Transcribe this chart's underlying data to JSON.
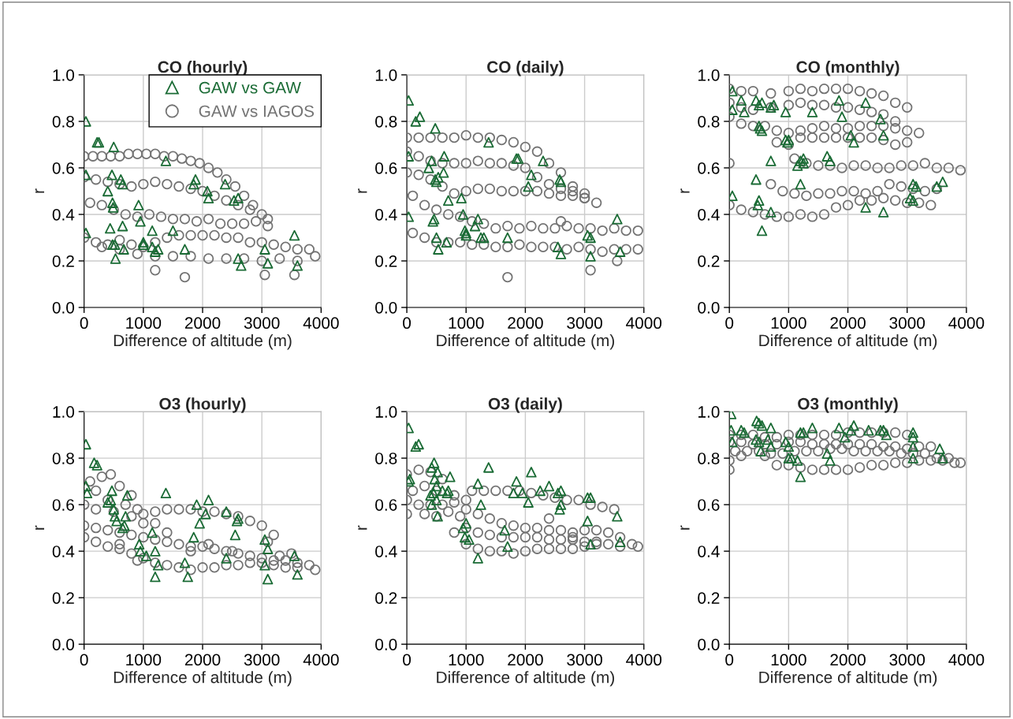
{
  "chart_data": [
    {
      "type": "scatter",
      "title": "CO (hourly)",
      "xlabel": "Difference of altitude (m)",
      "ylabel": "r",
      "xlim": [
        0,
        4000
      ],
      "ylim": [
        0,
        1
      ],
      "xticks": [
        0,
        1000,
        2000,
        3000,
        4000
      ],
      "yticks": [
        {
          "value": 0,
          "label": "0.0"
        },
        {
          "value": 0.2,
          "label": "0.2"
        },
        {
          "value": 0.4,
          "label": "0.4"
        },
        {
          "value": 0.6,
          "label": "0.6"
        },
        {
          "value": 0.8,
          "label": "0.8"
        },
        {
          "value": 1,
          "label": "1.0"
        }
      ],
      "grid": true,
      "legend": "top right",
      "series": [
        {
          "name": "GAW vs GAW",
          "color": "#1a6b35",
          "marker": "triangle",
          "x": [
            30,
            220,
            250,
            500,
            1380,
            30,
            470,
            620,
            650,
            400,
            480,
            490,
            920,
            1850,
            1880,
            2380,
            2100,
            2080,
            2530,
            2600,
            30,
            440,
            650,
            950,
            1500,
            1150,
            480,
            520,
            530,
            670,
            1000,
            1150,
            1200,
            1250,
            1700,
            2600,
            2650,
            3050,
            3100,
            3550,
            3600,
            1000
          ],
          "values": [
            0.8,
            0.71,
            0.71,
            0.69,
            0.63,
            0.57,
            0.57,
            0.55,
            0.53,
            0.5,
            0.45,
            0.43,
            0.44,
            0.53,
            0.55,
            0.53,
            0.47,
            0.5,
            0.46,
            0.47,
            0.32,
            0.34,
            0.35,
            0.37,
            0.33,
            0.33,
            0.27,
            0.27,
            0.21,
            0.25,
            0.27,
            0.26,
            0.24,
            0.25,
            0.25,
            0.21,
            0.18,
            0.25,
            0.19,
            0.31,
            0.18,
            0.28
          ]
        },
        {
          "name": "GAW vs IAGOS",
          "color": "#737373",
          "marker": "circle",
          "x": [
            0,
            150,
            300,
            450,
            600,
            750,
            900,
            1050,
            1200,
            1350,
            1500,
            1650,
            1800,
            1950,
            2100,
            2250,
            2400,
            2550,
            2700,
            2850,
            0,
            200,
            400,
            600,
            800,
            1000,
            1200,
            1400,
            1600,
            1800,
            2000,
            2200,
            2400,
            2600,
            2800,
            3000,
            100,
            300,
            500,
            700,
            900,
            1100,
            1300,
            1500,
            1700,
            1900,
            2100,
            2300,
            2500,
            2700,
            2900,
            3100,
            0,
            200,
            400,
            600,
            800,
            1000,
            1200,
            1400,
            1600,
            1800,
            2000,
            2200,
            2400,
            2600,
            2800,
            3000,
            3200,
            3400,
            3600,
            3800,
            300,
            600,
            900,
            1200,
            1500,
            1800,
            2100,
            2400,
            2700,
            3000,
            3300,
            3600,
            3900,
            1200,
            1700,
            3050,
            3100,
            3550
          ],
          "values": [
            0.65,
            0.65,
            0.65,
            0.65,
            0.65,
            0.66,
            0.66,
            0.66,
            0.66,
            0.65,
            0.65,
            0.64,
            0.63,
            0.62,
            0.6,
            0.58,
            0.55,
            0.52,
            0.48,
            0.44,
            0.56,
            0.55,
            0.54,
            0.53,
            0.52,
            0.53,
            0.54,
            0.53,
            0.52,
            0.51,
            0.5,
            0.48,
            0.46,
            0.44,
            0.42,
            0.4,
            0.45,
            0.44,
            0.42,
            0.4,
            0.39,
            0.4,
            0.39,
            0.38,
            0.38,
            0.37,
            0.38,
            0.36,
            0.36,
            0.36,
            0.37,
            0.38,
            0.3,
            0.28,
            0.27,
            0.29,
            0.27,
            0.26,
            0.28,
            0.3,
            0.31,
            0.31,
            0.31,
            0.31,
            0.3,
            0.3,
            0.28,
            0.28,
            0.27,
            0.26,
            0.25,
            0.25,
            0.26,
            0.25,
            0.23,
            0.22,
            0.22,
            0.22,
            0.21,
            0.21,
            0.21,
            0.2,
            0.21,
            0.2,
            0.22,
            0.16,
            0.13,
            0.14,
            0.35,
            0.14
          ]
        }
      ]
    },
    {
      "type": "scatter",
      "title": "CO (daily)",
      "xlabel": "Difference of altitude (m)",
      "ylabel": "r",
      "xlim": [
        0,
        4000
      ],
      "ylim": [
        0,
        1
      ],
      "xticks": [
        0,
        1000,
        2000,
        3000,
        4000
      ],
      "yticks": [
        {
          "value": 0,
          "label": "0.0"
        },
        {
          "value": 0.2,
          "label": "0.2"
        },
        {
          "value": 0.4,
          "label": "0.4"
        },
        {
          "value": 0.6,
          "label": "0.6"
        },
        {
          "value": 0.8,
          "label": "0.8"
        },
        {
          "value": 1,
          "label": "1.0"
        }
      ],
      "grid": true,
      "series": [
        {
          "color": "#1a6b35",
          "marker": "triangle",
          "x": [
            30,
            150,
            220,
            480,
            1380,
            30,
            420,
            630,
            370,
            620,
            480,
            530,
            500,
            700,
            920,
            2300,
            1850,
            1880,
            2600,
            2580,
            2100,
            2050,
            30,
            440,
            460,
            950,
            1000,
            1200,
            1150,
            500,
            530,
            670,
            980,
            1000,
            1250,
            1300,
            1700,
            2550,
            2600,
            3050,
            3100,
            3100,
            3550,
            3600
          ],
          "values": [
            0.89,
            0.8,
            0.82,
            0.77,
            0.71,
            0.65,
            0.63,
            0.65,
            0.6,
            0.58,
            0.55,
            0.56,
            0.54,
            0.46,
            0.47,
            0.63,
            0.64,
            0.64,
            0.54,
            0.55,
            0.57,
            0.52,
            0.39,
            0.37,
            0.38,
            0.4,
            0.32,
            0.38,
            0.35,
            0.3,
            0.25,
            0.28,
            0.33,
            0.31,
            0.3,
            0.3,
            0.3,
            0.26,
            0.23,
            0.31,
            0.3,
            0.22,
            0.38,
            0.24
          ]
        },
        {
          "color": "#737373",
          "marker": "circle",
          "x": [
            0,
            200,
            400,
            600,
            800,
            1000,
            1200,
            1400,
            1600,
            1800,
            2000,
            2200,
            2400,
            2600,
            2800,
            3000,
            0,
            200,
            400,
            600,
            800,
            1000,
            1200,
            1400,
            1600,
            1800,
            2000,
            2200,
            2400,
            2600,
            2800,
            3000,
            3200,
            0,
            200,
            400,
            600,
            800,
            1000,
            1200,
            1400,
            1600,
            1800,
            2000,
            2200,
            2400,
            2600,
            2800,
            3000,
            100,
            300,
            500,
            700,
            900,
            1100,
            1300,
            1500,
            1700,
            1900,
            2100,
            2300,
            2500,
            2700,
            2900,
            3100,
            3300,
            3500,
            3700,
            3900,
            100,
            300,
            500,
            700,
            900,
            1100,
            1300,
            1500,
            1700,
            1900,
            2100,
            2300,
            2500,
            2700,
            2900,
            3100,
            3300,
            3500,
            3700,
            3900,
            1700,
            3100,
            3550,
            2600
          ],
          "values": [
            0.73,
            0.73,
            0.73,
            0.73,
            0.73,
            0.74,
            0.73,
            0.73,
            0.72,
            0.71,
            0.69,
            0.67,
            0.62,
            0.58,
            0.52,
            0.47,
            0.67,
            0.65,
            0.63,
            0.62,
            0.62,
            0.62,
            0.63,
            0.62,
            0.62,
            0.61,
            0.6,
            0.56,
            0.53,
            0.51,
            0.5,
            0.49,
            0.45,
            0.58,
            0.57,
            0.55,
            0.52,
            0.49,
            0.5,
            0.51,
            0.51,
            0.5,
            0.5,
            0.5,
            0.5,
            0.49,
            0.48,
            0.48,
            0.47,
            0.48,
            0.44,
            0.42,
            0.4,
            0.39,
            0.37,
            0.36,
            0.34,
            0.35,
            0.34,
            0.35,
            0.34,
            0.34,
            0.35,
            0.34,
            0.34,
            0.33,
            0.34,
            0.33,
            0.33,
            0.32,
            0.3,
            0.28,
            0.28,
            0.28,
            0.27,
            0.27,
            0.26,
            0.26,
            0.27,
            0.26,
            0.26,
            0.26,
            0.25,
            0.26,
            0.25,
            0.24,
            0.25,
            0.25,
            0.25,
            0.13,
            0.16,
            0.2,
            0.37
          ]
        }
      ]
    },
    {
      "type": "scatter",
      "title": "CO (monthly)",
      "xlabel": "Difference of altitude (m)",
      "ylabel": "r",
      "xlim": [
        0,
        4000
      ],
      "ylim": [
        0,
        1
      ],
      "xticks": [
        0,
        1000,
        2000,
        3000,
        4000
      ],
      "yticks": [
        {
          "value": 0,
          "label": "0.0"
        },
        {
          "value": 0.2,
          "label": "0.2"
        },
        {
          "value": 0.4,
          "label": "0.4"
        },
        {
          "value": 0.6,
          "label": "0.6"
        },
        {
          "value": 0.8,
          "label": "0.8"
        },
        {
          "value": 1,
          "label": "1.0"
        }
      ],
      "grid": true,
      "series": [
        {
          "color": "#1a6b35",
          "marker": "triangle",
          "x": [
            50,
            200,
            250,
            50,
            450,
            500,
            550,
            700,
            750,
            950,
            1400,
            1850,
            2300,
            1900,
            2550,
            2600,
            2050,
            2100,
            500,
            520,
            550,
            950,
            980,
            1000,
            1200,
            1250,
            1650,
            1700,
            700,
            1150,
            1250,
            450,
            1200,
            3100,
            3150,
            3500,
            3600,
            50,
            500,
            480,
            700,
            2300,
            2600,
            3050,
            3100,
            550
          ],
          "values": [
            0.93,
            0.89,
            0.84,
            0.85,
            0.89,
            0.87,
            0.88,
            0.86,
            0.87,
            0.84,
            0.84,
            0.89,
            0.88,
            0.82,
            0.81,
            0.74,
            0.74,
            0.71,
            0.78,
            0.77,
            0.76,
            0.72,
            0.71,
            0.72,
            0.63,
            0.64,
            0.65,
            0.63,
            0.63,
            0.61,
            0.62,
            0.55,
            0.53,
            0.53,
            0.52,
            0.52,
            0.54,
            0.48,
            0.46,
            0.44,
            0.41,
            0.43,
            0.41,
            0.47,
            0.46,
            0.33
          ]
        },
        {
          "color": "#737373",
          "marker": "circle",
          "x": [
            0,
            200,
            400,
            700,
            1000,
            1200,
            1400,
            1600,
            1800,
            2000,
            2200,
            2400,
            2600,
            2800,
            3000,
            0,
            200,
            400,
            700,
            1000,
            1200,
            1400,
            1600,
            1800,
            2000,
            2200,
            2400,
            2600,
            2800,
            0,
            200,
            400,
            600,
            800,
            1000,
            1200,
            1400,
            1600,
            1800,
            2000,
            2200,
            2400,
            2600,
            2800,
            3000,
            3200,
            800,
            1000,
            1200,
            1400,
            1600,
            1800,
            2000,
            2200,
            2400,
            2600,
            2800,
            3000,
            0,
            1100,
            1300,
            1500,
            1700,
            1900,
            2100,
            2300,
            2500,
            2700,
            2900,
            3100,
            3300,
            3500,
            3700,
            3900,
            700,
            900,
            1100,
            1300,
            1500,
            1700,
            1900,
            2100,
            2300,
            2500,
            2700,
            2900,
            3100,
            3300,
            3500,
            0,
            200,
            400,
            600,
            800,
            1000,
            1200,
            1400,
            1600,
            1800,
            2000,
            2200,
            2400,
            2600,
            2800,
            3000,
            3200,
            3400
          ],
          "values": [
            0.94,
            0.93,
            0.93,
            0.92,
            0.93,
            0.94,
            0.93,
            0.94,
            0.94,
            0.94,
            0.93,
            0.92,
            0.91,
            0.88,
            0.86,
            0.88,
            0.86,
            0.85,
            0.86,
            0.87,
            0.88,
            0.87,
            0.87,
            0.86,
            0.86,
            0.85,
            0.84,
            0.83,
            0.8,
            0.82,
            0.79,
            0.78,
            0.78,
            0.76,
            0.75,
            0.76,
            0.77,
            0.78,
            0.77,
            0.77,
            0.78,
            0.78,
            0.78,
            0.77,
            0.76,
            0.75,
            0.71,
            0.7,
            0.73,
            0.73,
            0.73,
            0.73,
            0.73,
            0.73,
            0.73,
            0.72,
            0.7,
            0.71,
            0.62,
            0.64,
            0.62,
            0.61,
            0.61,
            0.6,
            0.61,
            0.61,
            0.6,
            0.6,
            0.61,
            0.61,
            0.62,
            0.6,
            0.6,
            0.59,
            0.53,
            0.5,
            0.49,
            0.48,
            0.49,
            0.49,
            0.5,
            0.5,
            0.49,
            0.5,
            0.53,
            0.52,
            0.51,
            0.5,
            0.51,
            0.44,
            0.42,
            0.41,
            0.4,
            0.39,
            0.39,
            0.4,
            0.39,
            0.4,
            0.43,
            0.44,
            0.46,
            0.46,
            0.47,
            0.46,
            0.45,
            0.45,
            0.44
          ]
        }
      ]
    },
    {
      "type": "scatter",
      "title": "O3 (hourly)",
      "xlabel": "Difference of altitude (m)",
      "ylabel": "r",
      "xlim": [
        0,
        4000
      ],
      "ylim": [
        0,
        1
      ],
      "xticks": [
        0,
        1000,
        2000,
        3000,
        4000
      ],
      "yticks": [
        {
          "value": 0,
          "label": "0.0"
        },
        {
          "value": 0.2,
          "label": "0.2"
        },
        {
          "value": 0.4,
          "label": "0.4"
        },
        {
          "value": 0.6,
          "label": "0.6"
        },
        {
          "value": 0.8,
          "label": "0.8"
        },
        {
          "value": 1,
          "label": "1.0"
        }
      ],
      "grid": true,
      "series": [
        {
          "color": "#1a6b35",
          "marker": "triangle",
          "x": [
            30,
            170,
            220,
            30,
            50,
            470,
            730,
            1380,
            2100,
            1900,
            2400,
            2600,
            2580,
            2050,
            1950,
            1850,
            2550,
            3050,
            3100,
            3550,
            3600,
            3050,
            3100,
            2400,
            1700,
            1750,
            1200,
            1250,
            1050,
            950,
            930,
            400,
            450,
            500,
            520,
            550,
            700,
            680,
            650,
            1150,
            1200
          ],
          "values": [
            0.86,
            0.78,
            0.77,
            0.68,
            0.65,
            0.66,
            0.64,
            0.65,
            0.62,
            0.6,
            0.57,
            0.54,
            0.53,
            0.56,
            0.52,
            0.46,
            0.47,
            0.45,
            0.41,
            0.38,
            0.3,
            0.34,
            0.28,
            0.37,
            0.35,
            0.29,
            0.29,
            0.34,
            0.38,
            0.4,
            0.43,
            0.61,
            0.62,
            0.58,
            0.55,
            0.53,
            0.55,
            0.51,
            0.5,
            0.48,
            0.4
          ]
        },
        {
          "color": "#737373",
          "marker": "circle",
          "x": [
            1000,
            1200,
            1400,
            1600,
            1800,
            2000,
            2200,
            2400,
            2600,
            2800,
            3000,
            3200,
            100,
            300,
            450,
            600,
            800,
            200,
            400,
            700,
            900,
            0,
            200,
            500,
            800,
            1000,
            1200,
            1400,
            0,
            200,
            400,
            600,
            800,
            1000,
            1200,
            1400,
            1600,
            1800,
            2000,
            2200,
            2400,
            2600,
            2800,
            3000,
            3200,
            3400,
            3600,
            3800,
            3900,
            0,
            200,
            400,
            600,
            800,
            1000,
            1200,
            1400,
            1600,
            1800,
            2000,
            2200,
            2400,
            2600,
            2800,
            3000,
            3200,
            3400,
            3600,
            1800,
            2100,
            2500,
            3100,
            3300,
            3500,
            600,
            900
          ],
          "values": [
            0.56,
            0.57,
            0.58,
            0.58,
            0.58,
            0.57,
            0.57,
            0.56,
            0.55,
            0.53,
            0.51,
            0.47,
            0.7,
            0.72,
            0.73,
            0.68,
            0.64,
            0.66,
            0.62,
            0.6,
            0.58,
            0.6,
            0.58,
            0.57,
            0.55,
            0.52,
            0.52,
            0.48,
            0.51,
            0.5,
            0.49,
            0.48,
            0.47,
            0.46,
            0.45,
            0.44,
            0.43,
            0.42,
            0.42,
            0.41,
            0.4,
            0.39,
            0.38,
            0.37,
            0.36,
            0.36,
            0.35,
            0.34,
            0.32,
            0.46,
            0.44,
            0.42,
            0.41,
            0.39,
            0.37,
            0.35,
            0.34,
            0.33,
            0.32,
            0.33,
            0.33,
            0.34,
            0.34,
            0.35,
            0.35,
            0.34,
            0.33,
            0.33,
            0.4,
            0.43,
            0.4,
            0.44,
            0.38,
            0.39,
            0.43,
            0.36
          ]
        }
      ]
    },
    {
      "type": "scatter",
      "title": "O3 (daily)",
      "xlabel": "Difference of altitude (m)",
      "ylabel": "r",
      "xlim": [
        0,
        4000
      ],
      "ylim": [
        0,
        1
      ],
      "xticks": [
        0,
        1000,
        2000,
        3000,
        4000
      ],
      "yticks": [
        {
          "value": 0,
          "label": "0.0"
        },
        {
          "value": 0.2,
          "label": "0.2"
        },
        {
          "value": 0.4,
          "label": "0.4"
        },
        {
          "value": 0.6,
          "label": "0.6"
        },
        {
          "value": 0.8,
          "label": "0.8"
        },
        {
          "value": 1,
          "label": "1.0"
        }
      ],
      "grid": true,
      "series": [
        {
          "color": "#1a6b35",
          "marker": "triangle",
          "x": [
            30,
            150,
            200,
            460,
            420,
            520,
            30,
            50,
            470,
            500,
            730,
            1380,
            2100,
            1850,
            2400,
            2600,
            2550,
            2250,
            1950,
            1800,
            2050,
            2600,
            2580,
            3050,
            3100,
            3550,
            3050,
            3100,
            3600,
            1200,
            1250,
            1000,
            950,
            980,
            1050,
            1200,
            1700,
            1650,
            400,
            450,
            500,
            600,
            700,
            680,
            520,
            420
          ],
          "values": [
            0.93,
            0.85,
            0.86,
            0.78,
            0.76,
            0.74,
            0.7,
            0.71,
            0.71,
            0.68,
            0.72,
            0.76,
            0.74,
            0.7,
            0.68,
            0.66,
            0.65,
            0.66,
            0.65,
            0.65,
            0.61,
            0.6,
            0.58,
            0.63,
            0.63,
            0.55,
            0.53,
            0.43,
            0.44,
            0.69,
            0.6,
            0.52,
            0.5,
            0.46,
            0.45,
            0.37,
            0.42,
            0.49,
            0.64,
            0.65,
            0.62,
            0.66,
            0.66,
            0.65,
            0.55,
            0.6
          ]
        },
        {
          "color": "#737373",
          "marker": "circle",
          "x": [
            1100,
            1300,
            1500,
            1700,
            1900,
            2100,
            2300,
            2500,
            2700,
            2900,
            3100,
            3300,
            0,
            200,
            400,
            600,
            100,
            300,
            500,
            800,
            0,
            200,
            400,
            600,
            800,
            1000,
            0,
            300,
            500,
            700,
            900,
            1000,
            1200,
            1400,
            1600,
            1800,
            2000,
            2200,
            2400,
            2600,
            2800,
            3000,
            3200,
            3400,
            3600,
            3800,
            3900,
            1000,
            1200,
            1400,
            1600,
            1800,
            2000,
            2200,
            2400,
            2600,
            2800,
            3000,
            3200,
            3400,
            3600,
            1000,
            1200,
            1400,
            1600,
            1800,
            2000,
            2200,
            2400,
            2600,
            2800,
            3000,
            3200,
            3500,
            2400,
            800,
            2800
          ],
          "values": [
            0.66,
            0.66,
            0.66,
            0.66,
            0.66,
            0.65,
            0.64,
            0.63,
            0.62,
            0.62,
            0.6,
            0.59,
            0.73,
            0.75,
            0.74,
            0.71,
            0.66,
            0.68,
            0.66,
            0.64,
            0.62,
            0.6,
            0.6,
            0.6,
            0.61,
            0.62,
            0.56,
            0.56,
            0.55,
            0.57,
            0.55,
            0.58,
            0.56,
            0.54,
            0.52,
            0.51,
            0.5,
            0.5,
            0.49,
            0.49,
            0.48,
            0.49,
            0.49,
            0.48,
            0.46,
            0.43,
            0.42,
            0.5,
            0.48,
            0.47,
            0.46,
            0.46,
            0.46,
            0.46,
            0.45,
            0.45,
            0.45,
            0.44,
            0.44,
            0.43,
            0.42,
            0.43,
            0.41,
            0.4,
            0.4,
            0.39,
            0.4,
            0.41,
            0.41,
            0.41,
            0.41,
            0.42,
            0.43,
            0.58,
            0.54,
            0.48,
            0.46
          ]
        }
      ]
    },
    {
      "type": "scatter",
      "title": "O3 (monthly)",
      "xlabel": "Difference of altitude (m)",
      "ylabel": "r",
      "xlim": [
        0,
        4000
      ],
      "ylim": [
        0,
        1
      ],
      "xticks": [
        0,
        1000,
        2000,
        3000,
        4000
      ],
      "yticks": [
        {
          "value": 0,
          "label": "0.0"
        },
        {
          "value": 0.2,
          "label": "0.2"
        },
        {
          "value": 0.4,
          "label": "0.4"
        },
        {
          "value": 0.6,
          "label": "0.6"
        },
        {
          "value": 0.8,
          "label": "0.8"
        },
        {
          "value": 1,
          "label": "1.0"
        }
      ],
      "grid": true,
      "series": [
        {
          "color": "#1a6b35",
          "marker": "triangle",
          "x": [
            30,
            460,
            500,
            550,
            30,
            200,
            250,
            700,
            1400,
            1850,
            2100,
            2050,
            2350,
            2550,
            2600,
            2650,
            3100,
            3100,
            1950,
            1200,
            1250,
            450,
            500,
            650,
            50,
            950,
            1000,
            700,
            530,
            3100,
            3550,
            3600,
            3100,
            1650,
            1700,
            1000,
            1050,
            1150,
            1200
          ],
          "values": [
            0.99,
            0.96,
            0.95,
            0.94,
            0.92,
            0.92,
            0.91,
            0.93,
            0.93,
            0.93,
            0.94,
            0.92,
            0.92,
            0.92,
            0.92,
            0.9,
            0.91,
            0.89,
            0.89,
            0.91,
            0.91,
            0.88,
            0.87,
            0.88,
            0.87,
            0.87,
            0.85,
            0.85,
            0.83,
            0.85,
            0.84,
            0.8,
            0.8,
            0.82,
            0.79,
            0.8,
            0.8,
            0.79,
            0.72
          ]
        },
        {
          "color": "#737373",
          "marker": "circle",
          "x": [
            0,
            200,
            400,
            600,
            800,
            1000,
            1200,
            1400,
            1600,
            1800,
            2000,
            2200,
            2400,
            2600,
            2800,
            3000,
            0,
            200,
            400,
            600,
            800,
            1000,
            1200,
            1400,
            1600,
            1800,
            2000,
            2200,
            2400,
            2600,
            2800,
            3000,
            3200,
            3400,
            100,
            300,
            500,
            700,
            900,
            1100,
            1300,
            1500,
            1700,
            1900,
            2100,
            2300,
            2500,
            2700,
            2900,
            3100,
            3300,
            3500,
            3700,
            3900,
            0,
            200,
            600,
            800,
            1000,
            1200,
            1400,
            1600,
            1800,
            2000,
            2200,
            2400,
            2600,
            2800,
            3000,
            3200,
            3400,
            3600,
            3800,
            0
          ],
          "values": [
            0.9,
            0.9,
            0.9,
            0.89,
            0.89,
            0.9,
            0.9,
            0.9,
            0.9,
            0.9,
            0.91,
            0.91,
            0.91,
            0.91,
            0.91,
            0.9,
            0.87,
            0.87,
            0.86,
            0.86,
            0.86,
            0.87,
            0.87,
            0.86,
            0.86,
            0.86,
            0.86,
            0.86,
            0.86,
            0.85,
            0.85,
            0.84,
            0.85,
            0.85,
            0.83,
            0.83,
            0.83,
            0.82,
            0.82,
            0.83,
            0.83,
            0.83,
            0.84,
            0.84,
            0.83,
            0.83,
            0.83,
            0.83,
            0.82,
            0.82,
            0.82,
            0.8,
            0.8,
            0.78,
            0.79,
            0.81,
            0.81,
            0.77,
            0.77,
            0.76,
            0.75,
            0.75,
            0.75,
            0.75,
            0.76,
            0.77,
            0.77,
            0.78,
            0.78,
            0.79,
            0.79,
            0.79,
            0.78,
            0.75
          ]
        }
      ]
    }
  ]
}
